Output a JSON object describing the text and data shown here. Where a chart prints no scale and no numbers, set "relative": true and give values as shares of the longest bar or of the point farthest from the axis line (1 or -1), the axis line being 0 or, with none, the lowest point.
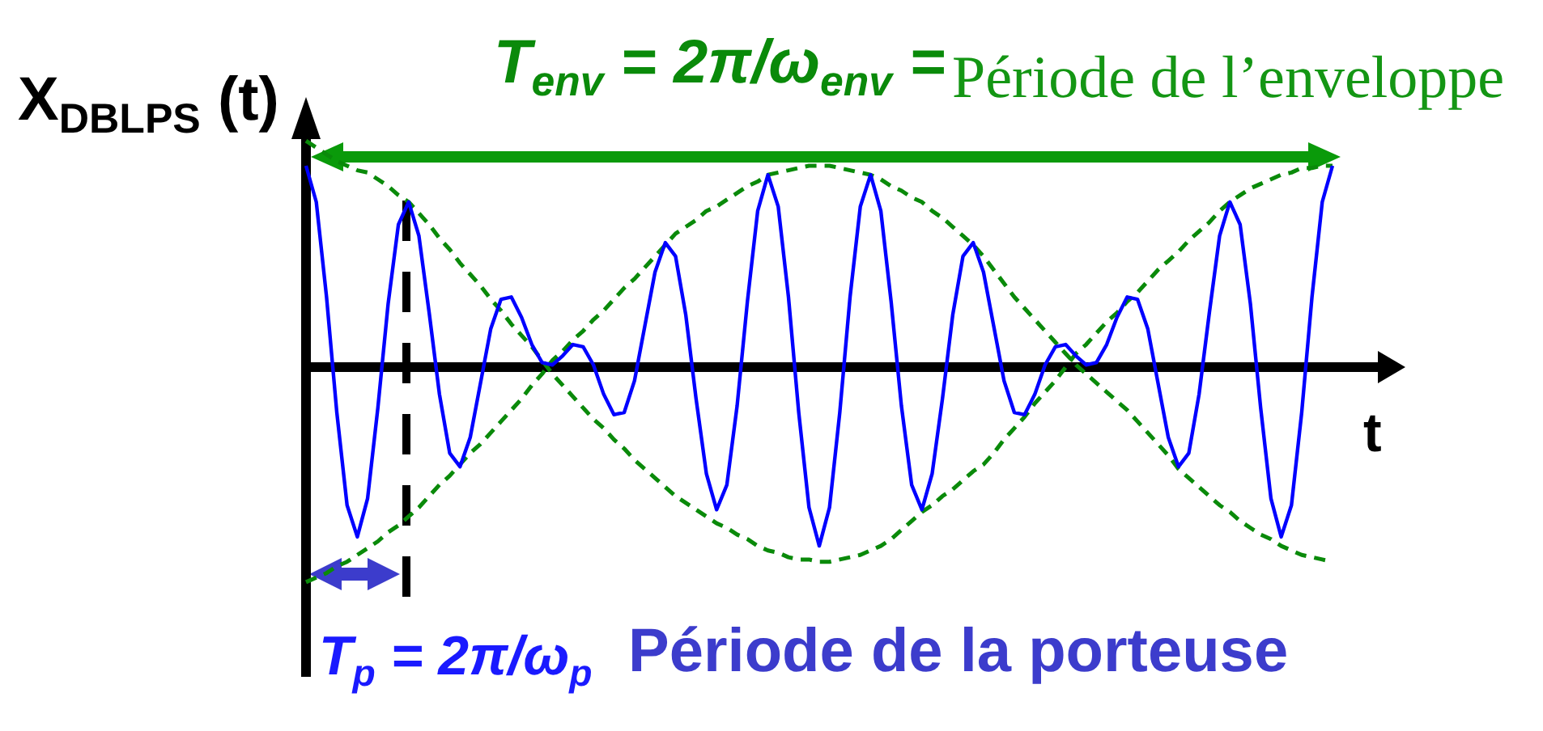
{
  "chart_data": {
    "type": "line",
    "relative": true,
    "ylabel": "X$_{DBLPS}$ (t)",
    "xlabel": "t",
    "categories": [
      null,
      null,
      null,
      null,
      null,
      null,
      null,
      null,
      null,
      null,
      null,
      null,
      null,
      null,
      null,
      null,
      null,
      null,
      null,
      null,
      null,
      null,
      null,
      null,
      null,
      null,
      null,
      null,
      null,
      null,
      null,
      null,
      null,
      null,
      null,
      null,
      null,
      null,
      null,
      null,
      null,
      null,
      null,
      null,
      null,
      null,
      null,
      null,
      null,
      null,
      null,
      null,
      null,
      null,
      null,
      null,
      null,
      null,
      null,
      null,
      null,
      null,
      null,
      null,
      null,
      null,
      null,
      null,
      null,
      null,
      null,
      null,
      null,
      null,
      null,
      null,
      null,
      null,
      null,
      null,
      null,
      null,
      null,
      null,
      null,
      null,
      null,
      null,
      null,
      null,
      null,
      null,
      null,
      null,
      null,
      null,
      null,
      null,
      null,
      null,
      null
    ],
    "series": [
      {
        "color": "#0000ff",
        "line_style": "solid",
        "values": [
          0.89,
          0.73,
          0.31,
          -0.2,
          -0.61,
          -0.75,
          -0.58,
          -0.18,
          0.28,
          0.63,
          0.73,
          0.58,
          0.24,
          -0.12,
          -0.38,
          -0.44,
          -0.31,
          -0.07,
          0.17,
          0.3,
          0.31,
          0.22,
          0.1,
          0.02,
          0.01,
          0.05,
          0.1,
          0.09,
          0.01,
          -0.12,
          -0.21,
          -0.2,
          -0.06,
          0.18,
          0.42,
          0.55,
          0.49,
          0.23,
          -0.14,
          -0.47,
          -0.63,
          -0.52,
          -0.17,
          0.29,
          0.69,
          0.85,
          0.71,
          0.31,
          -0.2,
          -0.62,
          -0.79,
          -0.62,
          -0.2,
          0.31,
          0.71,
          0.85,
          0.69,
          0.29,
          -0.17,
          -0.52,
          -0.63,
          -0.47,
          -0.14,
          0.23,
          0.49,
          0.55,
          0.42,
          0.18,
          -0.06,
          -0.2,
          -0.21,
          -0.12,
          0.01,
          0.09,
          0.1,
          0.05,
          0.01,
          0.02,
          0.1,
          0.22,
          0.31,
          0.3,
          0.17,
          -0.07,
          -0.31,
          -0.44,
          -0.38,
          -0.12,
          0.24,
          0.58,
          0.73,
          0.63,
          0.28,
          -0.18,
          -0.58,
          -0.75,
          -0.61,
          -0.2,
          0.31,
          0.73,
          0.89
        ]
      },
      {
        "color": "#0a8a0a",
        "line_style": "dashed",
        "values": [
          1.0,
          0.97,
          0.94,
          0.91,
          0.89,
          0.87,
          0.86,
          0.83,
          0.8,
          0.76,
          0.73,
          0.68,
          0.63,
          0.57,
          0.52,
          0.46,
          0.41,
          0.36,
          0.3,
          0.25,
          0.19,
          0.14,
          0.09,
          0.03,
          -0.03,
          -0.08,
          -0.13,
          -0.18,
          -0.23,
          -0.27,
          -0.32,
          -0.36,
          -0.41,
          -0.45,
          -0.49,
          -0.53,
          -0.57,
          -0.6,
          -0.63,
          -0.66,
          -0.69,
          -0.71,
          -0.74,
          -0.76,
          -0.79,
          -0.81,
          -0.82,
          -0.84,
          -0.85,
          -0.85,
          -0.86,
          -0.86,
          -0.85,
          -0.84,
          -0.83,
          -0.81,
          -0.79,
          -0.76,
          -0.72,
          -0.68,
          -0.64,
          -0.61,
          -0.57,
          -0.54,
          -0.5,
          -0.46,
          -0.43,
          -0.38,
          -0.32,
          -0.27,
          -0.22,
          -0.16,
          -0.11,
          -0.06,
          0.0,
          0.06,
          0.1,
          0.15,
          0.2,
          0.24,
          0.29,
          0.33,
          0.38,
          0.43,
          0.47,
          0.51,
          0.56,
          0.6,
          0.64,
          0.69,
          0.73,
          0.76,
          0.79,
          0.81,
          0.83,
          0.85,
          0.86,
          0.88,
          0.88,
          0.89,
          0.89
        ]
      },
      {
        "color": "#0a8a0a",
        "line_style": "dashed",
        "values": [
          -0.95,
          -0.93,
          -0.91,
          -0.88,
          -0.86,
          -0.83,
          -0.8,
          -0.77,
          -0.73,
          -0.7,
          -0.66,
          -0.62,
          -0.57,
          -0.52,
          -0.48,
          -0.43,
          -0.38,
          -0.34,
          -0.29,
          -0.24,
          -0.19,
          -0.14,
          -0.08,
          -0.03,
          0.03,
          0.07,
          0.12,
          0.16,
          0.21,
          0.25,
          0.3,
          0.35,
          0.39,
          0.44,
          0.49,
          0.54,
          0.59,
          0.62,
          0.65,
          0.69,
          0.71,
          0.74,
          0.77,
          0.8,
          0.82,
          0.85,
          0.86,
          0.87,
          0.88,
          0.89,
          0.89,
          0.89,
          0.88,
          0.87,
          0.86,
          0.85,
          0.83,
          0.8,
          0.78,
          0.75,
          0.73,
          0.69,
          0.66,
          0.62,
          0.58,
          0.54,
          0.49,
          0.43,
          0.37,
          0.31,
          0.26,
          0.21,
          0.16,
          0.11,
          0.06,
          0.01,
          -0.03,
          -0.07,
          -0.11,
          -0.15,
          -0.19,
          -0.24,
          -0.29,
          -0.34,
          -0.39,
          -0.45,
          -0.49,
          -0.53,
          -0.57,
          -0.61,
          -0.64,
          -0.68,
          -0.71,
          -0.74,
          -0.76,
          -0.79,
          -0.81,
          -0.83,
          -0.84,
          -0.85,
          -0.86
        ]
      }
    ],
    "annotations": [
      "T$_{env}$ = 2π/ω$_{env}$ =",
      "Période de l’enveloppe",
      "T$_{p}$ = 2π/ω$_{p}$",
      "Période de la porteuse"
    ],
    "grid": false,
    "legend": false,
    "marker": "none"
  }
}
